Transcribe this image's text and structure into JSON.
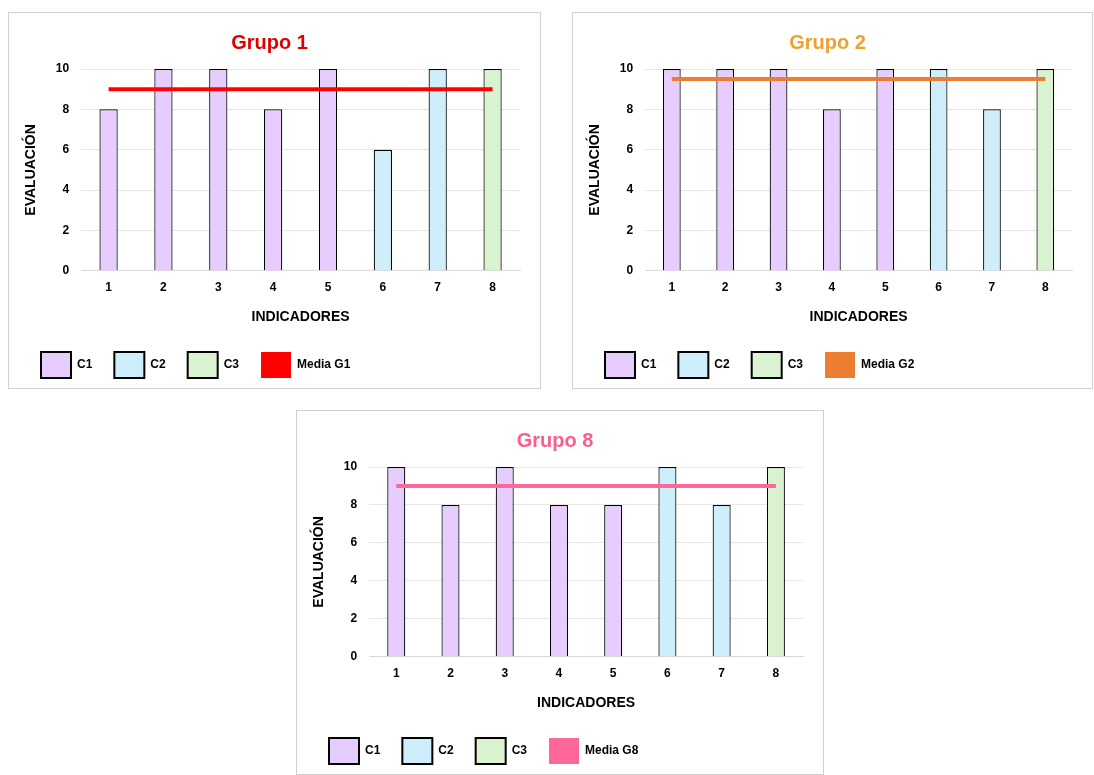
{
  "chart_data": [
    {
      "type": "bar",
      "title": "Grupo 1",
      "xlabel": "INDICADORES",
      "ylabel": "EVALUACIÓN",
      "categories": [
        "1",
        "2",
        "3",
        "4",
        "5",
        "6",
        "7",
        "8"
      ],
      "series": [
        {
          "name": "C1",
          "color": "#e6ccff",
          "values": [
            8,
            10,
            10,
            8,
            10,
            null,
            null,
            null
          ]
        },
        {
          "name": "C2",
          "color": "#cdeefa",
          "values": [
            null,
            null,
            null,
            null,
            null,
            6,
            10,
            null
          ]
        },
        {
          "name": "C3",
          "color": "#d9f2d0",
          "values": [
            null,
            null,
            null,
            null,
            null,
            null,
            null,
            10
          ]
        },
        {
          "name": "Media G1",
          "type": "line",
          "color": "#ff0000",
          "marker": "none",
          "values": [
            9,
            9,
            9,
            9,
            9,
            9,
            9,
            9
          ]
        }
      ],
      "ylim": [
        0,
        10
      ],
      "yticks": [
        0,
        2,
        4,
        6,
        8,
        10
      ],
      "grid": "y",
      "legend": "bottom left"
    },
    {
      "type": "bar",
      "title": "Grupo 2",
      "xlabel": "INDICADORES",
      "ylabel": "EVALUACIÓN",
      "categories": [
        "1",
        "2",
        "3",
        "4",
        "5",
        "6",
        "7",
        "8"
      ],
      "series": [
        {
          "name": "C1",
          "color": "#e6ccff",
          "values": [
            10,
            10,
            10,
            8,
            10,
            null,
            null,
            null
          ]
        },
        {
          "name": "C2",
          "color": "#cdeefa",
          "values": [
            null,
            null,
            null,
            null,
            null,
            10,
            8,
            null
          ]
        },
        {
          "name": "C3",
          "color": "#d9f2d0",
          "values": [
            null,
            null,
            null,
            null,
            null,
            null,
            null,
            10
          ]
        },
        {
          "name": "Media G2",
          "type": "line",
          "color": "#ed7d31",
          "marker": "none",
          "values": [
            9.5,
            9.5,
            9.5,
            9.5,
            9.5,
            9.5,
            9.5,
            9.5
          ]
        }
      ],
      "ylim": [
        0,
        10
      ],
      "yticks": [
        0,
        2,
        4,
        6,
        8,
        10
      ],
      "grid": "y",
      "legend": "bottom left"
    },
    {
      "type": "bar",
      "title": "Grupo 8",
      "xlabel": "INDICADORES",
      "ylabel": "EVALUACIÓN",
      "categories": [
        "1",
        "2",
        "3",
        "4",
        "5",
        "6",
        "7",
        "8"
      ],
      "series": [
        {
          "name": "C1",
          "color": "#e6ccff",
          "values": [
            10,
            8,
            10,
            8,
            8,
            null,
            null,
            null
          ]
        },
        {
          "name": "C2",
          "color": "#cdeefa",
          "values": [
            null,
            null,
            null,
            null,
            null,
            10,
            8,
            null
          ]
        },
        {
          "name": "C3",
          "color": "#d9f2d0",
          "values": [
            null,
            null,
            null,
            null,
            null,
            null,
            null,
            10
          ]
        },
        {
          "name": "Media G8",
          "type": "line",
          "color": "#ff6699",
          "marker": "none",
          "values": [
            9,
            9,
            9,
            9,
            9,
            9,
            9,
            9
          ]
        }
      ],
      "ylim": [
        0,
        10
      ],
      "yticks": [
        0,
        2,
        4,
        6,
        8,
        10
      ],
      "grid": "y",
      "legend": "bottom left"
    }
  ]
}
